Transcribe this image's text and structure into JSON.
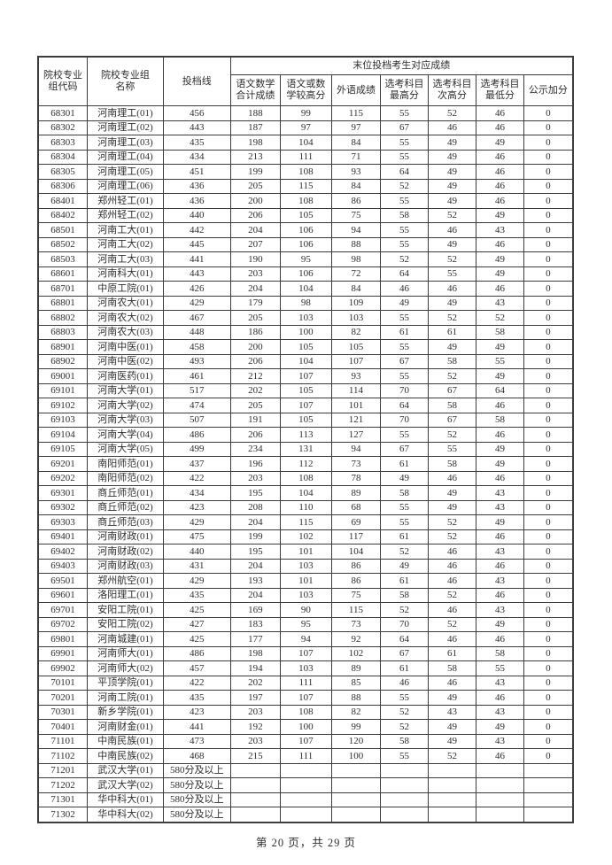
{
  "table": {
    "group_header": "末位投档考生对应成绩",
    "columns": {
      "code": "院校专业\n组代码",
      "name": "院校专业组\n名称",
      "cutoff": "投档线"
    },
    "sub_columns": [
      "语文数学\n合计成绩",
      "语文或数\n学较高分",
      "外语成绩",
      "选考科目\n最高分",
      "选考科目\n次高分",
      "选考科目\n最低分",
      "公示加分"
    ],
    "rows": [
      [
        "68301",
        "河南理工(01)",
        "456",
        "188",
        "99",
        "115",
        "55",
        "52",
        "46",
        "0"
      ],
      [
        "68302",
        "河南理工(02)",
        "443",
        "187",
        "97",
        "97",
        "67",
        "46",
        "46",
        "0"
      ],
      [
        "68303",
        "河南理工(03)",
        "435",
        "198",
        "104",
        "84",
        "55",
        "49",
        "49",
        "0"
      ],
      [
        "68304",
        "河南理工(04)",
        "434",
        "213",
        "111",
        "71",
        "55",
        "49",
        "46",
        "0"
      ],
      [
        "68305",
        "河南理工(05)",
        "451",
        "199",
        "108",
        "93",
        "64",
        "49",
        "46",
        "0"
      ],
      [
        "68306",
        "河南理工(06)",
        "436",
        "205",
        "115",
        "84",
        "52",
        "49",
        "46",
        "0"
      ],
      [
        "68401",
        "郑州轻工(01)",
        "436",
        "200",
        "108",
        "86",
        "55",
        "49",
        "46",
        "0"
      ],
      [
        "68402",
        "郑州轻工(02)",
        "440",
        "206",
        "105",
        "75",
        "58",
        "52",
        "49",
        "0"
      ],
      [
        "68501",
        "河南工大(01)",
        "442",
        "204",
        "106",
        "94",
        "55",
        "46",
        "43",
        "0"
      ],
      [
        "68502",
        "河南工大(02)",
        "445",
        "207",
        "106",
        "88",
        "55",
        "49",
        "46",
        "0"
      ],
      [
        "68503",
        "河南工大(03)",
        "441",
        "190",
        "95",
        "98",
        "52",
        "52",
        "49",
        "0"
      ],
      [
        "68601",
        "河南科大(01)",
        "443",
        "203",
        "106",
        "72",
        "64",
        "55",
        "49",
        "0"
      ],
      [
        "68701",
        "中原工院(01)",
        "426",
        "204",
        "104",
        "84",
        "46",
        "46",
        "46",
        "0"
      ],
      [
        "68801",
        "河南农大(01)",
        "429",
        "179",
        "98",
        "109",
        "49",
        "49",
        "43",
        "0"
      ],
      [
        "68802",
        "河南农大(02)",
        "467",
        "205",
        "103",
        "103",
        "55",
        "52",
        "52",
        "0"
      ],
      [
        "68803",
        "河南农大(03)",
        "448",
        "186",
        "100",
        "82",
        "61",
        "61",
        "58",
        "0"
      ],
      [
        "68901",
        "河南中医(01)",
        "458",
        "200",
        "105",
        "105",
        "55",
        "49",
        "49",
        "0"
      ],
      [
        "68902",
        "河南中医(02)",
        "493",
        "206",
        "104",
        "107",
        "67",
        "58",
        "55",
        "0"
      ],
      [
        "69001",
        "河南医药(01)",
        "461",
        "212",
        "107",
        "93",
        "55",
        "52",
        "49",
        "0"
      ],
      [
        "69101",
        "河南大学(01)",
        "517",
        "202",
        "105",
        "114",
        "70",
        "67",
        "64",
        "0"
      ],
      [
        "69102",
        "河南大学(02)",
        "474",
        "205",
        "107",
        "101",
        "64",
        "58",
        "46",
        "0"
      ],
      [
        "69103",
        "河南大学(03)",
        "507",
        "191",
        "105",
        "121",
        "70",
        "67",
        "58",
        "0"
      ],
      [
        "69104",
        "河南大学(04)",
        "486",
        "206",
        "113",
        "127",
        "55",
        "52",
        "46",
        "0"
      ],
      [
        "69105",
        "河南大学(05)",
        "499",
        "234",
        "131",
        "94",
        "67",
        "55",
        "49",
        "0"
      ],
      [
        "69201",
        "南阳师范(01)",
        "437",
        "196",
        "112",
        "73",
        "61",
        "58",
        "49",
        "0"
      ],
      [
        "69202",
        "南阳师范(02)",
        "422",
        "203",
        "108",
        "78",
        "49",
        "46",
        "46",
        "0"
      ],
      [
        "69301",
        "商丘师范(01)",
        "434",
        "195",
        "104",
        "89",
        "58",
        "49",
        "43",
        "0"
      ],
      [
        "69302",
        "商丘师范(02)",
        "423",
        "208",
        "110",
        "68",
        "55",
        "49",
        "43",
        "0"
      ],
      [
        "69303",
        "商丘师范(03)",
        "429",
        "204",
        "115",
        "69",
        "55",
        "52",
        "49",
        "0"
      ],
      [
        "69401",
        "河南财政(01)",
        "475",
        "199",
        "102",
        "117",
        "61",
        "52",
        "46",
        "0"
      ],
      [
        "69402",
        "河南财政(02)",
        "440",
        "195",
        "101",
        "104",
        "52",
        "46",
        "43",
        "0"
      ],
      [
        "69403",
        "河南财政(03)",
        "431",
        "204",
        "103",
        "86",
        "49",
        "46",
        "46",
        "0"
      ],
      [
        "69501",
        "郑州航空(01)",
        "429",
        "193",
        "101",
        "86",
        "61",
        "46",
        "43",
        "0"
      ],
      [
        "69601",
        "洛阳理工(01)",
        "435",
        "204",
        "103",
        "75",
        "58",
        "52",
        "46",
        "0"
      ],
      [
        "69701",
        "安阳工院(01)",
        "425",
        "169",
        "90",
        "115",
        "52",
        "46",
        "43",
        "0"
      ],
      [
        "69702",
        "安阳工院(02)",
        "427",
        "183",
        "95",
        "73",
        "70",
        "52",
        "49",
        "0"
      ],
      [
        "69801",
        "河南城建(01)",
        "425",
        "177",
        "94",
        "92",
        "64",
        "46",
        "46",
        "0"
      ],
      [
        "69901",
        "河南师大(01)",
        "486",
        "198",
        "107",
        "102",
        "67",
        "61",
        "58",
        "0"
      ],
      [
        "69902",
        "河南师大(02)",
        "457",
        "194",
        "103",
        "89",
        "61",
        "58",
        "55",
        "0"
      ],
      [
        "70101",
        "平顶学院(01)",
        "422",
        "202",
        "111",
        "85",
        "46",
        "46",
        "43",
        "0"
      ],
      [
        "70201",
        "河南工院(01)",
        "435",
        "197",
        "107",
        "88",
        "55",
        "49",
        "46",
        "0"
      ],
      [
        "70301",
        "新乡学院(01)",
        "423",
        "203",
        "108",
        "82",
        "52",
        "43",
        "43",
        "0"
      ],
      [
        "70401",
        "河南财金(01)",
        "441",
        "192",
        "100",
        "99",
        "52",
        "49",
        "49",
        "0"
      ],
      [
        "71101",
        "中南民族(01)",
        "473",
        "203",
        "107",
        "120",
        "58",
        "49",
        "43",
        "0"
      ],
      [
        "71102",
        "中南民族(02)",
        "468",
        "215",
        "111",
        "100",
        "55",
        "52",
        "46",
        "0"
      ],
      [
        "71201",
        "武汉大学(01)",
        "580分及以上",
        "",
        "",
        "",
        "",
        "",
        "",
        ""
      ],
      [
        "71202",
        "武汉大学(02)",
        "580分及以上",
        "",
        "",
        "",
        "",
        "",
        "",
        ""
      ],
      [
        "71301",
        "华中科大(01)",
        "580分及以上",
        "",
        "",
        "",
        "",
        "",
        "",
        ""
      ],
      [
        "71302",
        "华中科大(02)",
        "580分及以上",
        "",
        "",
        "",
        "",
        "",
        "",
        ""
      ]
    ]
  },
  "footer": {
    "page_text": "第 20 页，共 29 页"
  }
}
